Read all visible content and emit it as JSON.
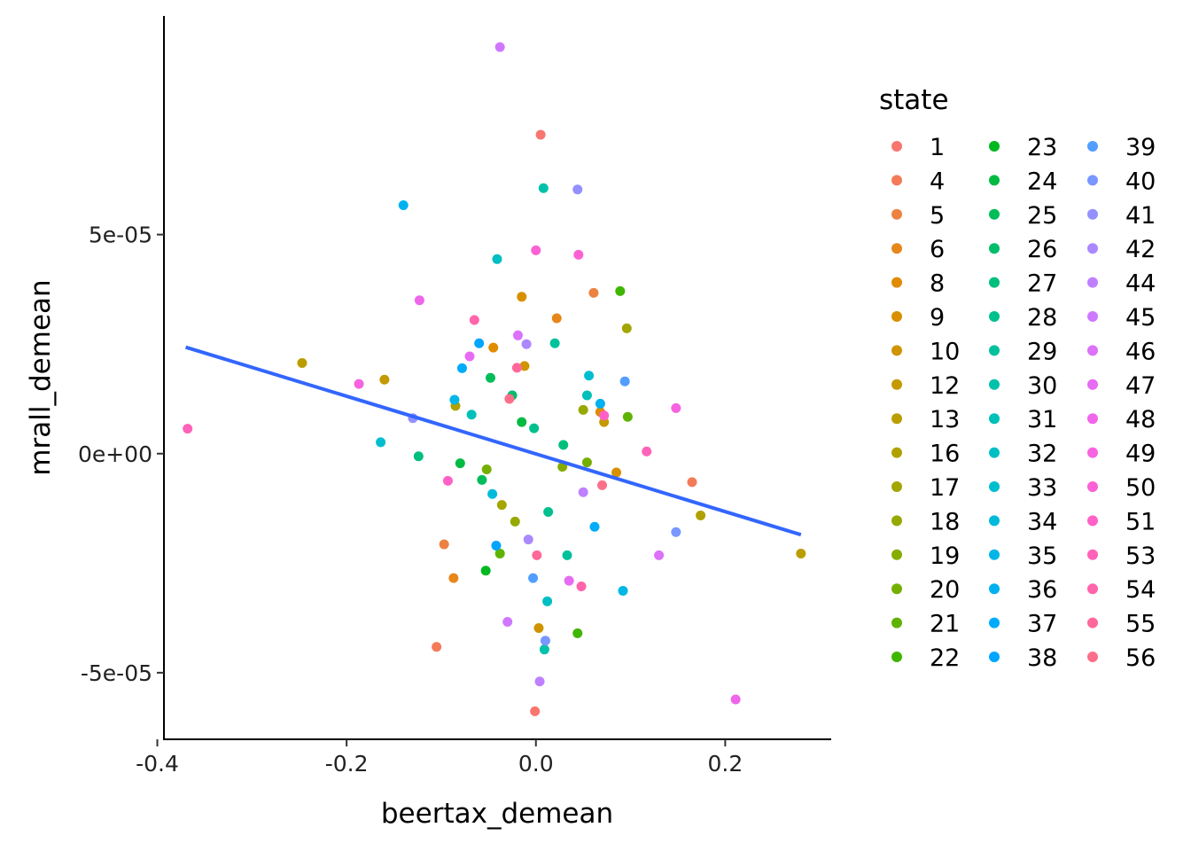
{
  "chart_data": {
    "type": "scatter",
    "title": "",
    "xlabel": "beertax_demean",
    "ylabel": "mrall_demean",
    "xlim": [
      -0.393,
      0.312
    ],
    "ylim": [
      -6.52e-05,
      9.99e-05
    ],
    "xticks": [
      -0.4,
      -0.2,
      0.0,
      0.2
    ],
    "xtick_labels": [
      "-0.4",
      "-0.2",
      "0.0",
      "0.2"
    ],
    "yticks": [
      -5e-05,
      0,
      5e-05
    ],
    "ytick_labels": [
      "-5e-05",
      "0e+00",
      "5e-05"
    ],
    "grid": false,
    "legend": {
      "title": "state",
      "position": "right",
      "entries": [
        "1",
        "4",
        "5",
        "6",
        "8",
        "9",
        "10",
        "12",
        "13",
        "16",
        "17",
        "18",
        "19",
        "20",
        "21",
        "22",
        "23",
        "24",
        "25",
        "26",
        "27",
        "28",
        "29",
        "30",
        "31",
        "32",
        "33",
        "34",
        "35",
        "36",
        "37",
        "38",
        "39",
        "40",
        "41",
        "42",
        "44",
        "45",
        "46",
        "47",
        "48",
        "49",
        "50",
        "51",
        "53",
        "54",
        "55",
        "56"
      ],
      "colors": [
        "#F8766D",
        "#F37B59",
        "#ED8141",
        "#E7861B",
        "#E08B00",
        "#D89000",
        "#CF9400",
        "#C59900",
        "#BB9D00",
        "#B0A100",
        "#A3A500",
        "#95A900",
        "#86AC00",
        "#74AF00",
        "#5EB300",
        "#3FB600",
        "#00B81F",
        "#00BA42",
        "#00BC59",
        "#00BD6C",
        "#00BF7D",
        "#00C08D",
        "#00C19C",
        "#00C1AA",
        "#00C0B8",
        "#00BFC4",
        "#00BDD0",
        "#00BADC",
        "#00B6E6",
        "#00B1F0",
        "#00ABFA",
        "#00A5FF",
        "#529EFF",
        "#7997FF",
        "#9590FF",
        "#AC88FF",
        "#BF80FF",
        "#CF78FF",
        "#DC71FA",
        "#E76BF3",
        "#F066EA",
        "#F763E0",
        "#FB61D4",
        "#FF61C7",
        "#FF62B9",
        "#FF65AA",
        "#FF699A",
        "#FC6F8A"
      ]
    },
    "fit_line": {
      "color": "#3366FF",
      "x": [
        -0.37,
        0.28
      ],
      "y": [
        2.43e-05,
        -1.85e-05
      ]
    },
    "points": [
      {
        "x": 0.005,
        "y": 7.28e-05,
        "s": 0
      },
      {
        "x": -0.001,
        "y": -5.88e-05,
        "s": 0
      },
      {
        "x": 0.165,
        "y": -6.5e-06,
        "s": 1
      },
      {
        "x": -0.105,
        "y": -4.41e-05,
        "s": 1
      },
      {
        "x": 0.061,
        "y": 3.67e-05,
        "s": 2
      },
      {
        "x": -0.097,
        "y": -2.07e-05,
        "s": 2
      },
      {
        "x": 0.022,
        "y": 3.09e-05,
        "s": 3
      },
      {
        "x": -0.087,
        "y": -2.84e-05,
        "s": 3
      },
      {
        "x": -0.045,
        "y": 2.42e-05,
        "s": 4
      },
      {
        "x": 0.068,
        "y": 9.5e-06,
        "s": 4
      },
      {
        "x": -0.015,
        "y": 3.58e-05,
        "s": 5
      },
      {
        "x": 0.085,
        "y": -4.3e-06,
        "s": 5
      },
      {
        "x": -0.012,
        "y": 2e-05,
        "s": 6
      },
      {
        "x": 0.003,
        "y": -3.98e-05,
        "s": 6
      },
      {
        "x": -0.16,
        "y": 1.69e-05,
        "s": 7
      },
      {
        "x": 0.072,
        "y": 7.2e-06,
        "s": 7
      },
      {
        "x": -0.247,
        "y": 2.07e-05,
        "s": 8
      },
      {
        "x": 0.28,
        "y": -2.28e-05,
        "s": 8
      },
      {
        "x": -0.085,
        "y": 1.09e-05,
        "s": 9
      },
      {
        "x": 0.174,
        "y": -1.41e-05,
        "s": 9
      },
      {
        "x": 0.096,
        "y": 2.86e-05,
        "s": 10
      },
      {
        "x": -0.036,
        "y": -1.17e-05,
        "s": 10
      },
      {
        "x": 0.05,
        "y": 1e-05,
        "s": 11
      },
      {
        "x": -0.022,
        "y": -1.55e-05,
        "s": 11
      },
      {
        "x": 0.028,
        "y": -3e-06,
        "s": 12
      },
      {
        "x": 0.054,
        "y": -2e-06,
        "s": 13
      },
      {
        "x": -0.052,
        "y": -3.6e-06,
        "s": 13
      },
      {
        "x": 0.097,
        "y": 8.4e-06,
        "s": 14
      },
      {
        "x": -0.038,
        "y": -2.28e-05,
        "s": 14
      },
      {
        "x": 0.089,
        "y": 3.71e-05,
        "s": 15
      },
      {
        "x": 0.044,
        "y": -4.1e-05,
        "s": 15
      },
      {
        "x": -0.053,
        "y": -2.67e-05,
        "s": 16
      },
      {
        "x": -0.08,
        "y": -2.2e-06,
        "s": 17
      },
      {
        "x": -0.015,
        "y": 7.2e-06,
        "s": 17
      },
      {
        "x": -0.048,
        "y": 1.73e-05,
        "s": 18
      },
      {
        "x": -0.057,
        "y": -6e-06,
        "s": 18
      },
      {
        "x": -0.025,
        "y": 1.33e-05,
        "s": 19
      },
      {
        "x": -0.124,
        "y": -6e-07,
        "s": 20
      },
      {
        "x": 0.029,
        "y": 2e-06,
        "s": 20
      },
      {
        "x": -0.002,
        "y": 5.8e-06,
        "s": 21
      },
      {
        "x": 0.013,
        "y": -1.33e-05,
        "s": 21
      },
      {
        "x": 0.02,
        "y": 2.52e-05,
        "s": 22
      },
      {
        "x": 0.033,
        "y": -2.32e-05,
        "s": 22
      },
      {
        "x": 0.008,
        "y": 6.06e-05,
        "s": 23
      },
      {
        "x": 0.009,
        "y": -4.47e-05,
        "s": 23
      },
      {
        "x": -0.068,
        "y": 8.9e-06,
        "s": 24
      },
      {
        "x": 0.054,
        "y": 1.33e-05,
        "s": 24
      },
      {
        "x": -0.041,
        "y": 4.44e-05,
        "s": 25
      },
      {
        "x": 0.012,
        "y": -3.37e-05,
        "s": 25
      },
      {
        "x": -0.164,
        "y": 2.6e-06,
        "s": 26
      },
      {
        "x": 0.056,
        "y": 1.78e-05,
        "s": 26
      },
      {
        "x": -0.046,
        "y": -9.2e-06,
        "s": 27
      },
      {
        "x": 0.092,
        "y": -3.13e-05,
        "s": 28
      },
      {
        "x": -0.086,
        "y": 1.23e-05,
        "s": 28
      },
      {
        "x": -0.14,
        "y": 5.67e-05,
        "s": 29
      },
      {
        "x": 0.068,
        "y": 1.14e-05,
        "s": 29
      },
      {
        "x": -0.078,
        "y": 1.95e-05,
        "s": 30
      },
      {
        "x": 0.062,
        "y": -1.67e-05,
        "s": 30
      },
      {
        "x": -0.06,
        "y": 2.52e-05,
        "s": 31
      },
      {
        "x": -0.042,
        "y": -2.1e-05,
        "s": 31
      },
      {
        "x": 0.094,
        "y": 1.65e-05,
        "s": 32
      },
      {
        "x": -0.003,
        "y": -2.84e-05,
        "s": 32
      },
      {
        "x": 0.148,
        "y": -1.79e-05,
        "s": 33
      },
      {
        "x": 0.01,
        "y": -4.27e-05,
        "s": 33
      },
      {
        "x": -0.13,
        "y": 8.1e-06,
        "s": 34
      },
      {
        "x": 0.044,
        "y": 6.03e-05,
        "s": 34
      },
      {
        "x": -0.008,
        "y": -1.96e-05,
        "s": 35
      },
      {
        "x": -0.01,
        "y": 2.5e-05,
        "s": 35
      },
      {
        "x": 0.05,
        "y": -8.8e-06,
        "s": 36
      },
      {
        "x": 0.004,
        "y": -5.2e-05,
        "s": 36
      },
      {
        "x": -0.038,
        "y": 9.28e-05,
        "s": 37
      },
      {
        "x": -0.03,
        "y": -3.84e-05,
        "s": 37
      },
      {
        "x": 0.13,
        "y": -2.32e-05,
        "s": 38
      },
      {
        "x": -0.019,
        "y": 2.7e-05,
        "s": 38
      },
      {
        "x": -0.07,
        "y": 2.22e-05,
        "s": 39
      },
      {
        "x": 0.035,
        "y": -2.9e-05,
        "s": 39
      },
      {
        "x": 0.211,
        "y": -5.61e-05,
        "s": 40
      },
      {
        "x": -0.123,
        "y": 3.5e-05,
        "s": 40
      },
      {
        "x": -0.187,
        "y": 1.59e-05,
        "s": 41
      },
      {
        "x": 0.148,
        "y": 1.04e-05,
        "s": 41
      },
      {
        "x": 0.0,
        "y": 4.64e-05,
        "s": 42
      },
      {
        "x": 0.045,
        "y": 4.54e-05,
        "s": 42
      },
      {
        "x": -0.093,
        "y": -6.2e-06,
        "s": 43
      },
      {
        "x": 0.072,
        "y": 8.7e-06,
        "s": 43
      },
      {
        "x": -0.368,
        "y": 5.7e-06,
        "s": 44
      },
      {
        "x": 0.117,
        "y": 5e-07,
        "s": 44
      },
      {
        "x": -0.065,
        "y": 3.05e-05,
        "s": 45
      },
      {
        "x": 0.048,
        "y": -3.03e-05,
        "s": 45
      },
      {
        "x": -0.02,
        "y": 1.96e-05,
        "s": 46
      },
      {
        "x": 0.001,
        "y": -2.32e-05,
        "s": 46
      },
      {
        "x": 0.07,
        "y": -7.2e-06,
        "s": 47
      },
      {
        "x": -0.028,
        "y": 1.25e-05,
        "s": 47
      }
    ]
  }
}
